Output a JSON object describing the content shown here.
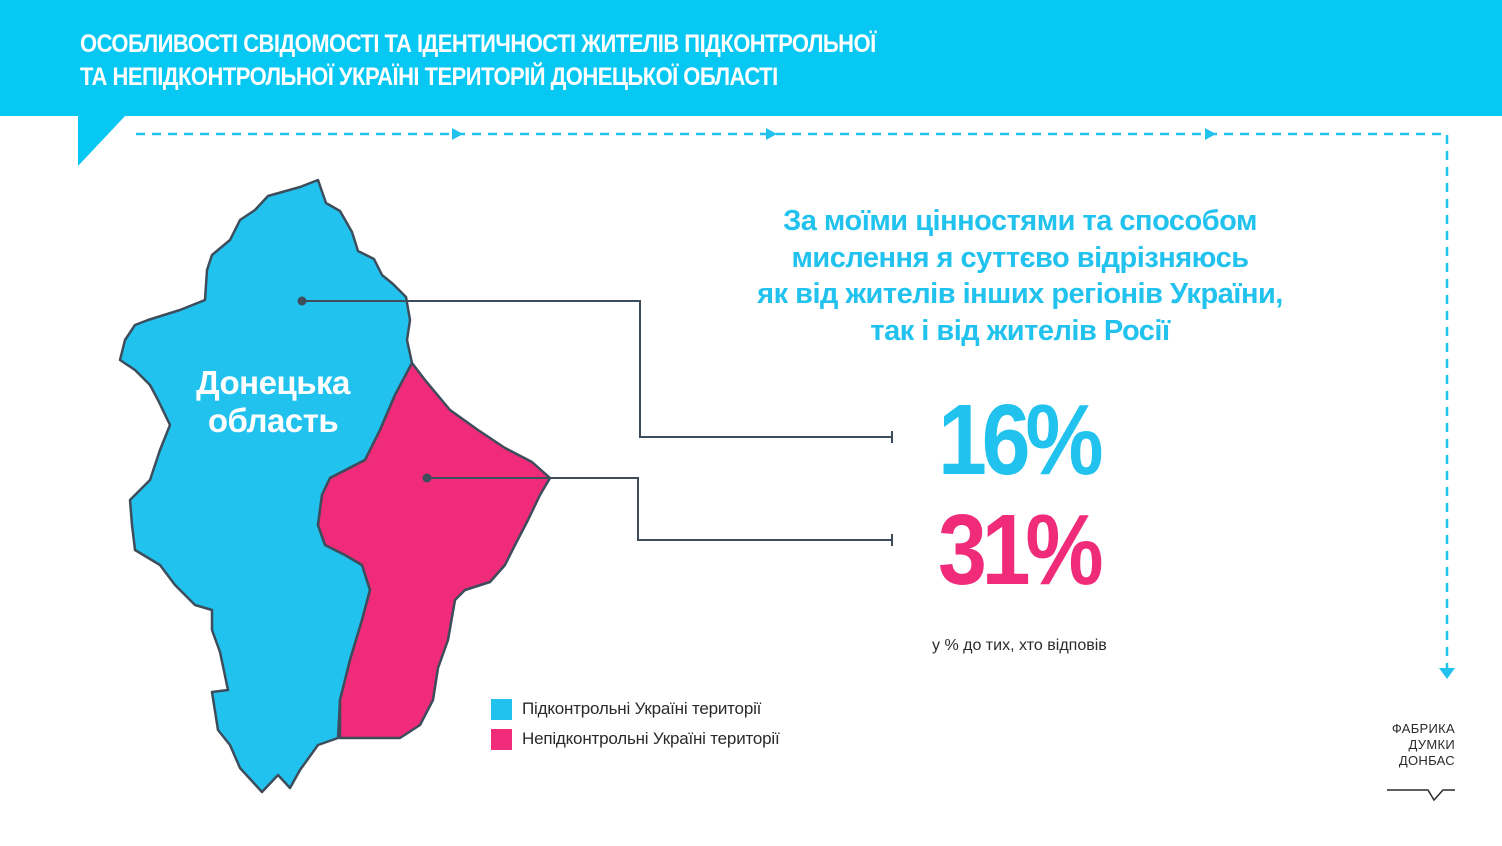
{
  "header": {
    "title_line1": "ОСОБЛИВОСТІ СВІДОМОСТІ ТА ІДЕНТИЧНОСТІ ЖИТЕЛІВ ПІДКОНТРОЛЬНОЇ",
    "title_line2": "ТА НЕПІДКОНТРОЛЬНОЇ УКРАЇНІ ТЕРИТОРІЙ ДОНЕЦЬКОЇ ОБЛАСТІ"
  },
  "question": {
    "line1": "За моїми цінностями та способом",
    "line2": "мислення я суттєво відрізняюсь",
    "line3": "як від жителів інших регіонів України,",
    "line4": "так і від жителів Росії"
  },
  "results": {
    "controlled_pct": "16%",
    "uncontrolled_pct": "31%",
    "note": "у % до тих, хто відповів"
  },
  "map": {
    "label_line1": "Донецька",
    "label_line2": "область"
  },
  "legend": [
    {
      "label": "Підконтрольні Україні території",
      "color": "#22c2ee"
    },
    {
      "label": "Непідконтрольні Україні території",
      "color": "#ef2b7a"
    }
  ],
  "logo": {
    "line1": "ФАБРИКА",
    "line2": "ДУМКИ",
    "line3": "ДОНБАС"
  },
  "colors": {
    "banner": "#07c8f3",
    "controlled": "#22c2ee",
    "uncontrolled": "#ef2b7a",
    "outline": "#3d4d5c"
  }
}
